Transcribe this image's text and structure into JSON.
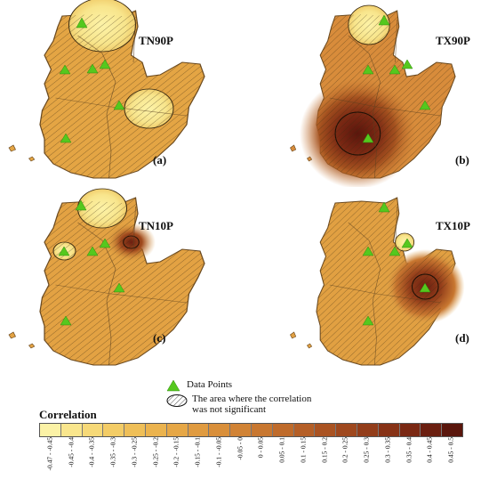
{
  "panels": [
    {
      "title": "TN90P",
      "label": "(a)"
    },
    {
      "title": "TX90P",
      "label": "(b)"
    },
    {
      "title": "TN10P",
      "label": "(c)"
    },
    {
      "title": "TX10P",
      "label": "(d)"
    }
  ],
  "legend": {
    "data_points": "Data Points",
    "not_significant_line1": "The area where the correlation",
    "not_significant_line2": "was not significant",
    "colorbar_title": "Correlation",
    "classes": [
      {
        "label": "-0.47 - -0.45",
        "color": "#fbf2a6"
      },
      {
        "label": "-0.45 - -0.4",
        "color": "#f9e68d"
      },
      {
        "label": "-0.4 - -0.35",
        "color": "#f6d978"
      },
      {
        "label": "-0.35 - -0.3",
        "color": "#f3cc66"
      },
      {
        "label": "-0.3 - -0.25",
        "color": "#efbf58"
      },
      {
        "label": "-0.25 - -0.2",
        "color": "#ebb34e"
      },
      {
        "label": "-0.2 - -0.15",
        "color": "#e6a746"
      },
      {
        "label": "-0.15 - -0.1",
        "color": "#e09b40"
      },
      {
        "label": "-0.1 - -0.05",
        "color": "#d98f3a"
      },
      {
        "label": "-0.05 - 0",
        "color": "#d18335"
      },
      {
        "label": "0 - 0.05",
        "color": "#c87730"
      },
      {
        "label": "0.05 - 0.1",
        "color": "#bf6b2b"
      },
      {
        "label": "0.1 - 0.15",
        "color": "#b55f27"
      },
      {
        "label": "0.15 - 0.2",
        "color": "#aa5322"
      },
      {
        "label": "0.2 - 0.25",
        "color": "#9f481e"
      },
      {
        "label": "0.25 - 0.3",
        "color": "#933d1a"
      },
      {
        "label": "0.3 - 0.35",
        "color": "#873216"
      },
      {
        "label": "0.35 - 0.4",
        "color": "#7a2813"
      },
      {
        "label": "0.4 - 0.45",
        "color": "#6b1f10"
      },
      {
        "label": "0.45 - 0.5",
        "color": "#5a160c"
      }
    ]
  }
}
